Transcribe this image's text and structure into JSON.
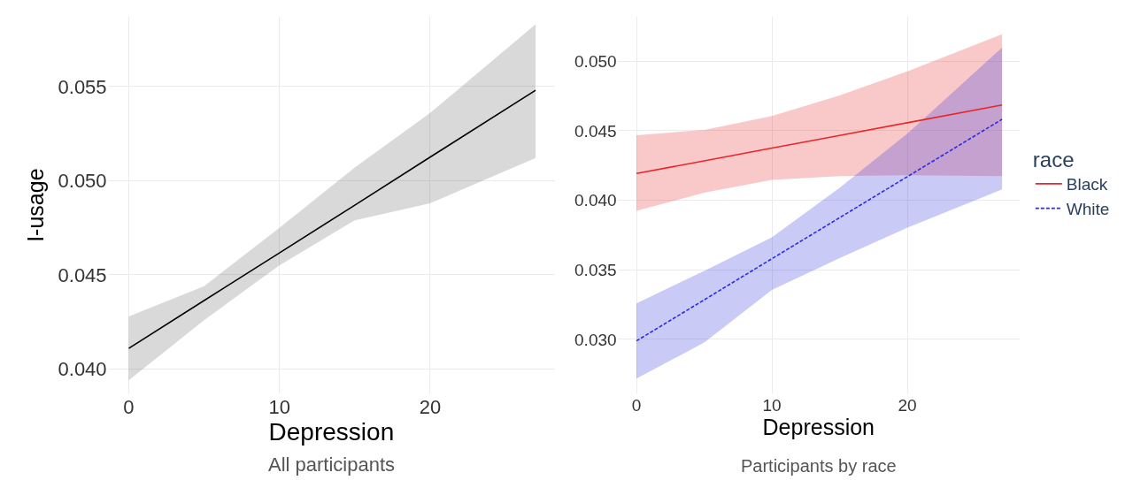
{
  "chart_data": [
    {
      "type": "line",
      "xlabel": "Depression",
      "ylabel": "I-usage",
      "annotations": [
        "All participants"
      ],
      "xlim": [
        -1.4,
        28.3
      ],
      "ylim": [
        0.0387,
        0.0587
      ],
      "xticks": [
        0,
        10,
        20
      ],
      "yticks": [
        {
          "value": 0.04,
          "label": "0.040"
        },
        {
          "value": 0.045,
          "label": "0.045"
        },
        {
          "value": 0.05,
          "label": "0.050"
        },
        {
          "value": 0.055,
          "label": "0.055"
        }
      ],
      "grid": true,
      "legend": false,
      "line_style": "solid",
      "series": [
        {
          "color": "#000000",
          "x": [
            0,
            5,
            10,
            15,
            20,
            27
          ],
          "values": [
            0.0411,
            0.04364,
            0.04617,
            0.0487,
            0.05125,
            0.0548
          ],
          "lower": [
            0.0394,
            0.0426,
            0.0455,
            0.0479,
            0.0488,
            0.0512
          ],
          "upper": [
            0.0428,
            0.0444,
            0.0475,
            0.0507,
            0.0536,
            0.0583
          ]
        }
      ]
    },
    {
      "type": "line",
      "xlabel": "Depression",
      "annotations": [
        "Participants by race"
      ],
      "legend_title": "race",
      "xlim": [
        -1.4,
        28.3
      ],
      "ylim": [
        0.0261,
        0.0532
      ],
      "xticks": [
        0,
        10,
        20
      ],
      "yticks": [
        {
          "value": 0.03,
          "label": "0.030"
        },
        {
          "value": 0.035,
          "label": "0.035"
        },
        {
          "value": 0.04,
          "label": "0.040"
        },
        {
          "value": 0.045,
          "label": "0.045"
        },
        {
          "value": 0.05,
          "label": "0.050"
        }
      ],
      "grid": true,
      "legend": "right",
      "series": [
        {
          "name": "Black",
          "color": "#e8262a",
          "line_style": "solid",
          "x": [
            0,
            5,
            10,
            15,
            20,
            27
          ],
          "values": [
            0.04193,
            0.04284,
            0.04376,
            0.04467,
            0.04558,
            0.04686
          ],
          "lower": [
            0.03924,
            0.04055,
            0.04147,
            0.04174,
            0.04181,
            0.04174
          ],
          "upper": [
            0.04468,
            0.04507,
            0.04606,
            0.04755,
            0.04927,
            0.05195
          ]
        },
        {
          "name": "White",
          "color": "#2b2be0",
          "line_style": "dashed",
          "x": [
            0,
            5,
            10,
            15,
            20,
            27
          ],
          "values": [
            0.02989,
            0.03284,
            0.0358,
            0.03875,
            0.0417,
            0.04583
          ],
          "lower": [
            0.02718,
            0.02977,
            0.03356,
            0.03585,
            0.03803,
            0.04078
          ],
          "upper": [
            0.03259,
            0.03493,
            0.03734,
            0.0409,
            0.0448,
            0.05099
          ]
        }
      ]
    }
  ]
}
